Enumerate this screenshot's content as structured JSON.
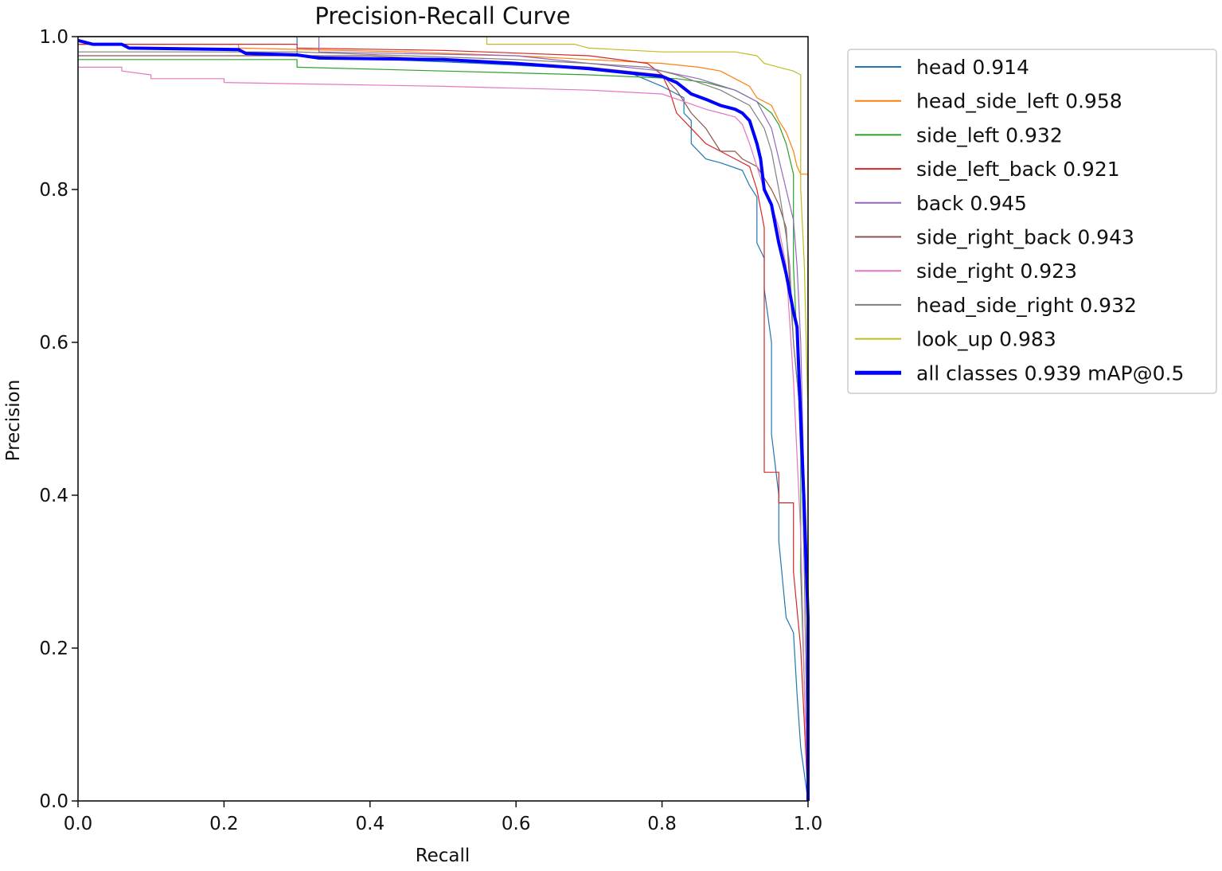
{
  "chart_data": {
    "type": "line",
    "title": "Precision-Recall Curve",
    "xlabel": "Recall",
    "ylabel": "Precision",
    "xlim": [
      0,
      1
    ],
    "ylim": [
      0,
      1
    ],
    "xticks": [
      "0.0",
      "0.2",
      "0.4",
      "0.6",
      "0.8",
      "1.0"
    ],
    "yticks": [
      "0.0",
      "0.2",
      "0.4",
      "0.6",
      "0.8",
      "1.0"
    ],
    "grid": false,
    "legend_position": "outside-upper-right",
    "series": [
      {
        "name": "head 0.914",
        "color": "#1f77b4",
        "width": 1.2,
        "points": [
          [
            0,
            1.0
          ],
          [
            0.3,
            1.0
          ],
          [
            0.3,
            0.975
          ],
          [
            0.55,
            0.965
          ],
          [
            0.75,
            0.955
          ],
          [
            0.8,
            0.935
          ],
          [
            0.83,
            0.92
          ],
          [
            0.83,
            0.9
          ],
          [
            0.84,
            0.89
          ],
          [
            0.84,
            0.86
          ],
          [
            0.86,
            0.84
          ],
          [
            0.88,
            0.835
          ],
          [
            0.91,
            0.825
          ],
          [
            0.92,
            0.805
          ],
          [
            0.93,
            0.79
          ],
          [
            0.93,
            0.73
          ],
          [
            0.94,
            0.71
          ],
          [
            0.94,
            0.67
          ],
          [
            0.95,
            0.6
          ],
          [
            0.95,
            0.48
          ],
          [
            0.96,
            0.4
          ],
          [
            0.96,
            0.34
          ],
          [
            0.97,
            0.24
          ],
          [
            0.98,
            0.22
          ],
          [
            0.985,
            0.14
          ],
          [
            0.99,
            0.07
          ],
          [
            1.0,
            0.0
          ]
        ]
      },
      {
        "name": "head_side_left 0.958",
        "color": "#ff7f0e",
        "width": 1.2,
        "points": [
          [
            0,
            0.99
          ],
          [
            0.22,
            0.99
          ],
          [
            0.22,
            0.985
          ],
          [
            0.45,
            0.98
          ],
          [
            0.6,
            0.975
          ],
          [
            0.7,
            0.97
          ],
          [
            0.8,
            0.965
          ],
          [
            0.85,
            0.96
          ],
          [
            0.88,
            0.955
          ],
          [
            0.9,
            0.945
          ],
          [
            0.92,
            0.935
          ],
          [
            0.93,
            0.92
          ],
          [
            0.95,
            0.91
          ],
          [
            0.96,
            0.89
          ],
          [
            0.97,
            0.875
          ],
          [
            0.98,
            0.85
          ],
          [
            0.985,
            0.83
          ],
          [
            0.99,
            0.82
          ],
          [
            1.0,
            0.82
          ],
          [
            1.0,
            0.6
          ],
          [
            1.0,
            0.0
          ]
        ]
      },
      {
        "name": "side_left 0.932",
        "color": "#2ca02c",
        "width": 1.2,
        "points": [
          [
            0,
            0.97
          ],
          [
            0.3,
            0.97
          ],
          [
            0.3,
            0.96
          ],
          [
            0.5,
            0.955
          ],
          [
            0.7,
            0.95
          ],
          [
            0.82,
            0.945
          ],
          [
            0.86,
            0.94
          ],
          [
            0.9,
            0.93
          ],
          [
            0.93,
            0.915
          ],
          [
            0.95,
            0.9
          ],
          [
            0.96,
            0.885
          ],
          [
            0.97,
            0.86
          ],
          [
            0.98,
            0.82
          ],
          [
            0.98,
            0.7
          ],
          [
            0.985,
            0.6
          ],
          [
            0.99,
            0.45
          ],
          [
            0.99,
            0.3
          ],
          [
            0.995,
            0.15
          ],
          [
            1.0,
            0.0
          ]
        ]
      },
      {
        "name": "side_left_back 0.921",
        "color": "#d62728",
        "width": 1.2,
        "points": [
          [
            0,
            0.99
          ],
          [
            0.3,
            0.99
          ],
          [
            0.3,
            0.985
          ],
          [
            0.5,
            0.982
          ],
          [
            0.7,
            0.975
          ],
          [
            0.78,
            0.965
          ],
          [
            0.8,
            0.95
          ],
          [
            0.81,
            0.93
          ],
          [
            0.82,
            0.9
          ],
          [
            0.84,
            0.88
          ],
          [
            0.86,
            0.86
          ],
          [
            0.88,
            0.85
          ],
          [
            0.9,
            0.84
          ],
          [
            0.92,
            0.83
          ],
          [
            0.93,
            0.8
          ],
          [
            0.94,
            0.75
          ],
          [
            0.94,
            0.43
          ],
          [
            0.96,
            0.43
          ],
          [
            0.96,
            0.39
          ],
          [
            0.98,
            0.39
          ],
          [
            0.98,
            0.3
          ],
          [
            0.99,
            0.2
          ],
          [
            0.995,
            0.1
          ],
          [
            1.0,
            0.0
          ]
        ]
      },
      {
        "name": "back 0.945",
        "color": "#9467bd",
        "width": 1.2,
        "points": [
          [
            0,
            1.0
          ],
          [
            0.33,
            1.0
          ],
          [
            0.33,
            0.98
          ],
          [
            0.6,
            0.975
          ],
          [
            0.7,
            0.965
          ],
          [
            0.8,
            0.955
          ],
          [
            0.85,
            0.945
          ],
          [
            0.9,
            0.93
          ],
          [
            0.93,
            0.915
          ],
          [
            0.95,
            0.88
          ],
          [
            0.96,
            0.84
          ],
          [
            0.97,
            0.8
          ],
          [
            0.98,
            0.76
          ],
          [
            0.985,
            0.7
          ],
          [
            0.99,
            0.6
          ],
          [
            0.995,
            0.4
          ],
          [
            1.0,
            0.2
          ],
          [
            1.0,
            0.0
          ]
        ]
      },
      {
        "name": "side_right_back 0.943",
        "color": "#8c564b",
        "width": 1.2,
        "points": [
          [
            0,
            0.975
          ],
          [
            0.4,
            0.975
          ],
          [
            0.5,
            0.97
          ],
          [
            0.6,
            0.965
          ],
          [
            0.7,
            0.96
          ],
          [
            0.8,
            0.95
          ],
          [
            0.82,
            0.93
          ],
          [
            0.84,
            0.9
          ],
          [
            0.86,
            0.88
          ],
          [
            0.88,
            0.85
          ],
          [
            0.9,
            0.85
          ],
          [
            0.91,
            0.84
          ],
          [
            0.93,
            0.83
          ],
          [
            0.95,
            0.8
          ],
          [
            0.96,
            0.78
          ],
          [
            0.97,
            0.75
          ],
          [
            0.98,
            0.6
          ],
          [
            0.99,
            0.5
          ],
          [
            0.995,
            0.3
          ],
          [
            1.0,
            0.0
          ]
        ]
      },
      {
        "name": "side_right 0.923",
        "color": "#e377c2",
        "width": 1.2,
        "points": [
          [
            0,
            0.96
          ],
          [
            0.06,
            0.96
          ],
          [
            0.06,
            0.955
          ],
          [
            0.1,
            0.95
          ],
          [
            0.1,
            0.945
          ],
          [
            0.2,
            0.945
          ],
          [
            0.2,
            0.94
          ],
          [
            0.5,
            0.935
          ],
          [
            0.7,
            0.93
          ],
          [
            0.8,
            0.925
          ],
          [
            0.83,
            0.915
          ],
          [
            0.86,
            0.905
          ],
          [
            0.88,
            0.9
          ],
          [
            0.9,
            0.895
          ],
          [
            0.91,
            0.885
          ],
          [
            0.92,
            0.86
          ],
          [
            0.93,
            0.83
          ],
          [
            0.94,
            0.8
          ],
          [
            0.95,
            0.78
          ],
          [
            0.96,
            0.75
          ],
          [
            0.97,
            0.7
          ],
          [
            0.98,
            0.55
          ],
          [
            0.99,
            0.35
          ],
          [
            0.995,
            0.15
          ],
          [
            1.0,
            0.0
          ]
        ]
      },
      {
        "name": "head_side_right 0.932",
        "color": "#7f7f7f",
        "width": 1.2,
        "points": [
          [
            0,
            0.98
          ],
          [
            0.3,
            0.98
          ],
          [
            0.45,
            0.975
          ],
          [
            0.6,
            0.97
          ],
          [
            0.7,
            0.965
          ],
          [
            0.78,
            0.96
          ],
          [
            0.82,
            0.95
          ],
          [
            0.85,
            0.94
          ],
          [
            0.88,
            0.93
          ],
          [
            0.9,
            0.92
          ],
          [
            0.92,
            0.91
          ],
          [
            0.94,
            0.88
          ],
          [
            0.95,
            0.85
          ],
          [
            0.96,
            0.8
          ],
          [
            0.97,
            0.74
          ],
          [
            0.975,
            0.7
          ],
          [
            0.98,
            0.6
          ],
          [
            0.99,
            0.5
          ],
          [
            0.995,
            0.3
          ],
          [
            1.0,
            0.0
          ]
        ]
      },
      {
        "name": "look_up 0.983",
        "color": "#bcbd22",
        "width": 1.2,
        "points": [
          [
            0,
            1.0
          ],
          [
            0.56,
            1.0
          ],
          [
            0.56,
            0.99
          ],
          [
            0.68,
            0.99
          ],
          [
            0.7,
            0.985
          ],
          [
            0.8,
            0.98
          ],
          [
            0.9,
            0.98
          ],
          [
            0.93,
            0.975
          ],
          [
            0.94,
            0.965
          ],
          [
            0.96,
            0.96
          ],
          [
            0.98,
            0.955
          ],
          [
            0.99,
            0.95
          ],
          [
            0.99,
            0.8
          ],
          [
            0.995,
            0.7
          ],
          [
            1.0,
            0.5
          ],
          [
            1.0,
            0.0
          ]
        ]
      },
      {
        "name": "all classes 0.939 mAP@0.5",
        "color": "#0000ff",
        "width": 4,
        "points": [
          [
            0,
            0.995
          ],
          [
            0.02,
            0.99
          ],
          [
            0.06,
            0.99
          ],
          [
            0.07,
            0.985
          ],
          [
            0.22,
            0.983
          ],
          [
            0.23,
            0.978
          ],
          [
            0.3,
            0.976
          ],
          [
            0.33,
            0.972
          ],
          [
            0.5,
            0.97
          ],
          [
            0.6,
            0.965
          ],
          [
            0.7,
            0.958
          ],
          [
            0.75,
            0.953
          ],
          [
            0.8,
            0.948
          ],
          [
            0.82,
            0.94
          ],
          [
            0.84,
            0.925
          ],
          [
            0.86,
            0.918
          ],
          [
            0.88,
            0.91
          ],
          [
            0.9,
            0.905
          ],
          [
            0.91,
            0.9
          ],
          [
            0.92,
            0.89
          ],
          [
            0.93,
            0.86
          ],
          [
            0.935,
            0.84
          ],
          [
            0.94,
            0.8
          ],
          [
            0.95,
            0.78
          ],
          [
            0.96,
            0.73
          ],
          [
            0.97,
            0.69
          ],
          [
            0.98,
            0.64
          ],
          [
            0.985,
            0.62
          ],
          [
            0.99,
            0.5
          ],
          [
            0.995,
            0.38
          ],
          [
            1.0,
            0.24
          ],
          [
            1.0,
            0.0
          ]
        ]
      }
    ]
  }
}
